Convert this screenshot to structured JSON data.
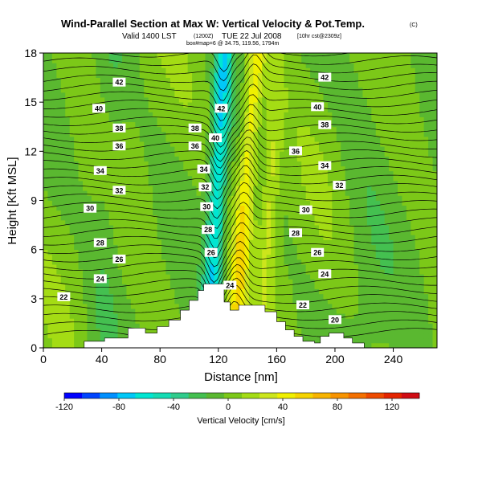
{
  "header": {
    "title": "Wind-Parallel Section at Max W: Vertical Velocity & Pot.Temp.",
    "copyright": "(C)",
    "valid_line": "Valid 1400 LST",
    "valid_utc": "(1200Z)",
    "valid_date": "TUE 22 Jul 2008",
    "valid_run": "[10hr cst@2309z]",
    "sub_line": "box#map=6 @ 34.75, 119.56, 1794m"
  },
  "chart_data": {
    "type": "heatmap",
    "title": "Wind-Parallel Section at Max W: Vertical Velocity & Pot.Temp.",
    "xlabel": "Distance [nm]",
    "ylabel": "Height [Kft MSL]",
    "xlim": [
      0,
      270
    ],
    "ylim": [
      0,
      18
    ],
    "xticks": [
      0,
      40,
      80,
      120,
      160,
      200,
      240
    ],
    "yticks": [
      0,
      3,
      6,
      9,
      12,
      15,
      18
    ],
    "xtick_labels": [
      "0",
      "40",
      "80",
      "120",
      "160",
      "200",
      "240"
    ],
    "ytick_labels": [
      "0",
      "3",
      "6",
      "9",
      "12",
      "15",
      "18"
    ],
    "colorbar": {
      "label": "Vertical Velocity [cm/s]",
      "min": -120,
      "max": 140,
      "ticks": [
        -120,
        -80,
        -40,
        0,
        40,
        80,
        120
      ],
      "tick_labels": [
        "-120",
        "-80",
        "-40",
        "0",
        "40",
        "80",
        "120"
      ],
      "colors": [
        "#0000ff",
        "#0044ff",
        "#0090ff",
        "#00c8f8",
        "#00e6d2",
        "#14dcb4",
        "#30cc8c",
        "#44c050",
        "#5ab830",
        "#7cc818",
        "#a4dc14",
        "#cce61c",
        "#f0f000",
        "#f6d400",
        "#f8b400",
        "#f89400",
        "#f47000",
        "#ee4a00",
        "#e42400",
        "#d00c14"
      ]
    },
    "terrain": [
      [
        0,
        0
      ],
      [
        28,
        0
      ],
      [
        28,
        0.4
      ],
      [
        42,
        0.4
      ],
      [
        42,
        0.6
      ],
      [
        58,
        0.6
      ],
      [
        58,
        1.2
      ],
      [
        70,
        1.2
      ],
      [
        70,
        0.9
      ],
      [
        78,
        0.9
      ],
      [
        78,
        1.3
      ],
      [
        86,
        1.3
      ],
      [
        86,
        1.7
      ],
      [
        94,
        1.7
      ],
      [
        94,
        2.3
      ],
      [
        100,
        2.3
      ],
      [
        100,
        2.9
      ],
      [
        106,
        2.9
      ],
      [
        106,
        3.5
      ],
      [
        110,
        3.5
      ],
      [
        110,
        3.9
      ],
      [
        124,
        3.9
      ],
      [
        124,
        2.8
      ],
      [
        128,
        2.8
      ],
      [
        128,
        2.3
      ],
      [
        134,
        2.3
      ],
      [
        134,
        2.6
      ],
      [
        152,
        2.6
      ],
      [
        152,
        2.2
      ],
      [
        160,
        2.2
      ],
      [
        160,
        1.6
      ],
      [
        166,
        1.6
      ],
      [
        166,
        1.1
      ],
      [
        172,
        1.1
      ],
      [
        172,
        0.7
      ],
      [
        178,
        0.7
      ],
      [
        178,
        0.4
      ],
      [
        186,
        0.4
      ],
      [
        186,
        0.3
      ],
      [
        190,
        0.3
      ],
      [
        190,
        0.7
      ],
      [
        196,
        0.7
      ],
      [
        196,
        0.9
      ],
      [
        206,
        0.9
      ],
      [
        206,
        0.6
      ],
      [
        212,
        0.6
      ],
      [
        212,
        0.3
      ],
      [
        220,
        0.3
      ],
      [
        220,
        0
      ],
      [
        270,
        0
      ]
    ],
    "updraft_core": {
      "x_center": 128,
      "width": 14,
      "peak_cm_s": 50
    },
    "downdraft_core": {
      "x_center": 116,
      "width": 12,
      "min_cm_s": -65
    },
    "isentrope_labels": [
      {
        "text": "42",
        "x": 52,
        "y": 16.2
      },
      {
        "text": "40",
        "x": 38,
        "y": 14.6
      },
      {
        "text": "38",
        "x": 52,
        "y": 13.4
      },
      {
        "text": "36",
        "x": 52,
        "y": 12.3
      },
      {
        "text": "34",
        "x": 39,
        "y": 10.8
      },
      {
        "text": "32",
        "x": 52,
        "y": 9.6
      },
      {
        "text": "30",
        "x": 32,
        "y": 8.5
      },
      {
        "text": "28",
        "x": 39,
        "y": 6.4
      },
      {
        "text": "26",
        "x": 52,
        "y": 5.4
      },
      {
        "text": "24",
        "x": 39,
        "y": 4.2
      },
      {
        "text": "22",
        "x": 14,
        "y": 3.1
      },
      {
        "text": "42",
        "x": 122,
        "y": 14.6
      },
      {
        "text": "40",
        "x": 118,
        "y": 12.8
      },
      {
        "text": "38",
        "x": 104,
        "y": 13.4
      },
      {
        "text": "36",
        "x": 104,
        "y": 12.3
      },
      {
        "text": "34",
        "x": 110,
        "y": 10.9
      },
      {
        "text": "32",
        "x": 111,
        "y": 9.8
      },
      {
        "text": "30",
        "x": 112,
        "y": 8.6
      },
      {
        "text": "28",
        "x": 113,
        "y": 7.2
      },
      {
        "text": "26",
        "x": 115,
        "y": 5.8
      },
      {
        "text": "24",
        "x": 128,
        "y": 3.8
      },
      {
        "text": "42",
        "x": 193,
        "y": 16.5
      },
      {
        "text": "40",
        "x": 188,
        "y": 14.7
      },
      {
        "text": "38",
        "x": 193,
        "y": 13.6
      },
      {
        "text": "36",
        "x": 173,
        "y": 12.0
      },
      {
        "text": "34",
        "x": 193,
        "y": 11.1
      },
      {
        "text": "32",
        "x": 203,
        "y": 9.9
      },
      {
        "text": "30",
        "x": 180,
        "y": 8.4
      },
      {
        "text": "28",
        "x": 173,
        "y": 7.0
      },
      {
        "text": "26",
        "x": 188,
        "y": 5.8
      },
      {
        "text": "24",
        "x": 193,
        "y": 4.5
      },
      {
        "text": "22",
        "x": 178,
        "y": 2.6
      },
      {
        "text": "20",
        "x": 200,
        "y": 1.7
      }
    ]
  }
}
